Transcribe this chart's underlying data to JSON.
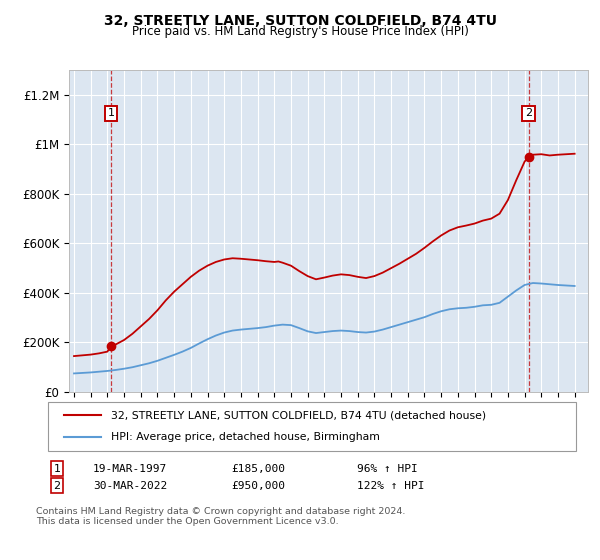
{
  "title": "32, STREETLY LANE, SUTTON COLDFIELD, B74 4TU",
  "subtitle": "Price paid vs. HM Land Registry's House Price Index (HPI)",
  "ylim": [
    0,
    1300000
  ],
  "yticks": [
    0,
    200000,
    400000,
    600000,
    800000,
    1000000,
    1200000
  ],
  "ytick_labels": [
    "£0",
    "£200K",
    "£400K",
    "£600K",
    "£800K",
    "£1M",
    "£1.2M"
  ],
  "bg_color": "#dce6f1",
  "red_line_color": "#c00000",
  "blue_line_color": "#5b9bd5",
  "transaction1_date": 1997.22,
  "transaction1_price": 185000,
  "transaction2_date": 2022.25,
  "transaction2_price": 950000,
  "legend_red_label": "32, STREETLY LANE, SUTTON COLDFIELD, B74 4TU (detached house)",
  "legend_blue_label": "HPI: Average price, detached house, Birmingham",
  "annotation1_label": "1",
  "annotation2_label": "2",
  "note1_date": "19-MAR-1997",
  "note1_price": "£185,000",
  "note1_hpi": "96% ↑ HPI",
  "note2_date": "30-MAR-2022",
  "note2_price": "£950,000",
  "note2_hpi": "122% ↑ HPI",
  "footer": "Contains HM Land Registry data © Crown copyright and database right 2024.\nThis data is licensed under the Open Government Licence v3.0.",
  "xmin": 1994.7,
  "xmax": 2025.8,
  "blue_data_x": [
    1995,
    1995.5,
    1996,
    1996.5,
    1997,
    1997.5,
    1998,
    1998.5,
    1999,
    1999.5,
    2000,
    2000.5,
    2001,
    2001.5,
    2002,
    2002.5,
    2003,
    2003.5,
    2004,
    2004.5,
    2005,
    2005.5,
    2006,
    2006.5,
    2007,
    2007.5,
    2008,
    2008.5,
    2009,
    2009.5,
    2010,
    2010.5,
    2011,
    2011.5,
    2012,
    2012.5,
    2013,
    2013.5,
    2014,
    2014.5,
    2015,
    2015.5,
    2016,
    2016.5,
    2017,
    2017.5,
    2018,
    2018.5,
    2019,
    2019.5,
    2020,
    2020.5,
    2021,
    2021.5,
    2022,
    2022.5,
    2023,
    2023.5,
    2024,
    2024.5,
    2025
  ],
  "blue_data_y": [
    75000,
    77000,
    79000,
    82000,
    85000,
    89000,
    94000,
    100000,
    108000,
    116000,
    126000,
    138000,
    150000,
    163000,
    178000,
    196000,
    213000,
    228000,
    240000,
    248000,
    252000,
    255000,
    258000,
    262000,
    268000,
    272000,
    270000,
    258000,
    245000,
    238000,
    242000,
    246000,
    248000,
    246000,
    242000,
    240000,
    244000,
    252000,
    262000,
    272000,
    282000,
    292000,
    302000,
    315000,
    326000,
    334000,
    338000,
    340000,
    344000,
    350000,
    352000,
    360000,
    385000,
    410000,
    432000,
    440000,
    438000,
    435000,
    432000,
    430000,
    428000
  ],
  "red_data_x": [
    1995,
    1995.5,
    1996,
    1996.5,
    1997,
    1997.22,
    1997.5,
    1998,
    1998.5,
    1999,
    1999.5,
    2000,
    2000.5,
    2001,
    2001.5,
    2002,
    2002.5,
    2003,
    2003.5,
    2004,
    2004.5,
    2005,
    2005.5,
    2006,
    2006.5,
    2007,
    2007.25,
    2007.5,
    2008,
    2008.5,
    2009,
    2009.5,
    2010,
    2010.5,
    2011,
    2011.5,
    2012,
    2012.5,
    2013,
    2013.5,
    2014,
    2014.5,
    2015,
    2015.5,
    2016,
    2016.5,
    2017,
    2017.5,
    2018,
    2018.5,
    2019,
    2019.5,
    2020,
    2020.5,
    2021,
    2021.5,
    2022,
    2022.25,
    2022.5,
    2023,
    2023.5,
    2024,
    2024.5,
    2025
  ],
  "red_data_y": [
    145000,
    148000,
    151000,
    156000,
    163000,
    185000,
    192000,
    210000,
    235000,
    265000,
    295000,
    330000,
    370000,
    405000,
    435000,
    465000,
    490000,
    510000,
    525000,
    535000,
    540000,
    538000,
    535000,
    532000,
    528000,
    525000,
    527000,
    522000,
    510000,
    488000,
    468000,
    455000,
    462000,
    470000,
    475000,
    472000,
    465000,
    460000,
    468000,
    482000,
    500000,
    518000,
    538000,
    558000,
    582000,
    608000,
    632000,
    652000,
    665000,
    672000,
    680000,
    692000,
    700000,
    720000,
    775000,
    855000,
    930000,
    950000,
    958000,
    960000,
    955000,
    958000,
    960000,
    962000
  ]
}
